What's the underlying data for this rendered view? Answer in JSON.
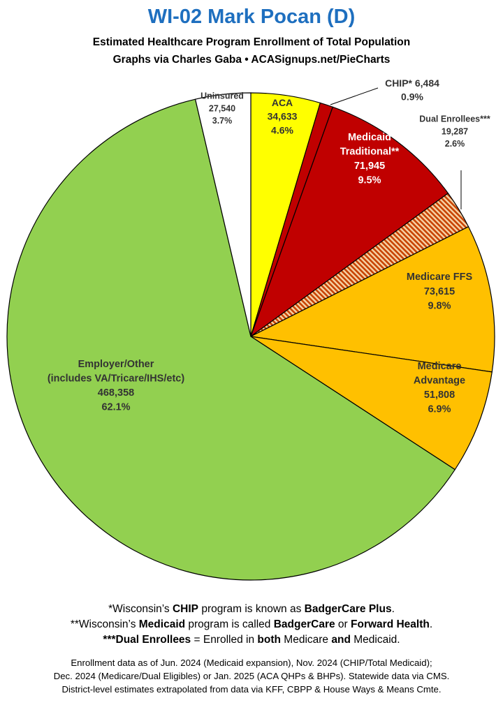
{
  "header": {
    "title": "WI-02 Mark Pocan (D)",
    "subtitle_line1": "Estimated Healthcare Program Enrollment of Total Population",
    "subtitle_line2": "Graphs via Charles Gaba  •  ACASignups.net/PieCharts"
  },
  "chart_data": {
    "type": "pie",
    "start": "12 o'clock",
    "direction": "clockwise",
    "slices": [
      {
        "label": [
          "ACA"
        ],
        "value": 34633,
        "value_text": "34,633",
        "percent": "4.6%",
        "color": "#ffff00",
        "text_color": "#333333",
        "label_position": "inside"
      },
      {
        "label": [
          "CHIP* 6,484"
        ],
        "value": 6484,
        "value_text": "",
        "percent": "0.9%",
        "color": "#c00000",
        "text_color": "#333333",
        "label_position": "outside"
      },
      {
        "label": [
          "Medicaid",
          "Traditional**"
        ],
        "value": 71945,
        "value_text": "71,945",
        "percent": "9.5%",
        "color": "#c00000",
        "text_color": "#ffffff",
        "label_position": "inside"
      },
      {
        "label": [
          "Dual Enrollees***"
        ],
        "value": 19287,
        "value_text": "19,287",
        "percent": "2.6%",
        "color": "#e86a00",
        "pattern": "hatched",
        "text_color": "#333333",
        "label_position": "outside"
      },
      {
        "label": [
          "Medicare FFS"
        ],
        "value": 73615,
        "value_text": "73,615",
        "percent": "9.8%",
        "color": "#ffc000",
        "text_color": "#333333",
        "label_position": "inside"
      },
      {
        "label": [
          "Medicare",
          "Advantage"
        ],
        "value": 51808,
        "value_text": "51,808",
        "percent": "6.9%",
        "color": "#ffc000",
        "text_color": "#333333",
        "label_position": "inside"
      },
      {
        "label": [
          "Employer/Other",
          "(includes VA/Tricare/IHS/etc)"
        ],
        "value": 468358,
        "value_text": "468,358",
        "percent": "62.1%",
        "color": "#92d050",
        "text_color": "#333333",
        "label_position": "inside"
      },
      {
        "label": [
          "Uninsured"
        ],
        "value": 27540,
        "value_text": "27,540",
        "percent": "3.7%",
        "color": "#ffffff",
        "text_color": "#333333",
        "label_position": "inside"
      }
    ]
  },
  "footnotes": {
    "line1": {
      "a": "*Wisconsin’s ",
      "b": "CHIP",
      "c": " program is known as ",
      "d": "BadgerCare Plus",
      "e": "."
    },
    "line2": {
      "a": "**Wisconsin’s ",
      "b": "Medicaid",
      "c": " program is called ",
      "d": "BadgerCare",
      "e": " or ",
      "f": "Forward Health",
      "g": "."
    },
    "line3": {
      "a": "***Dual Enrollees",
      "b": " = Enrolled in ",
      "c": "both",
      "d": " Medicare ",
      "e": "and",
      "f": " Medicaid."
    }
  },
  "source": {
    "line1": "Enrollment data as of Jun. 2024 (Medicaid expansion), Nov. 2024 (CHIP/Total Medicaid);",
    "line2": "Dec. 2024 (Medicare/Dual Eligibles) or Jan. 2025 (ACA QHPs & BHPs). Statewide data via CMS.",
    "line3": "District-level estimates extrapolated from data via KFF, CBPP & House Ways & Means Cmte."
  }
}
